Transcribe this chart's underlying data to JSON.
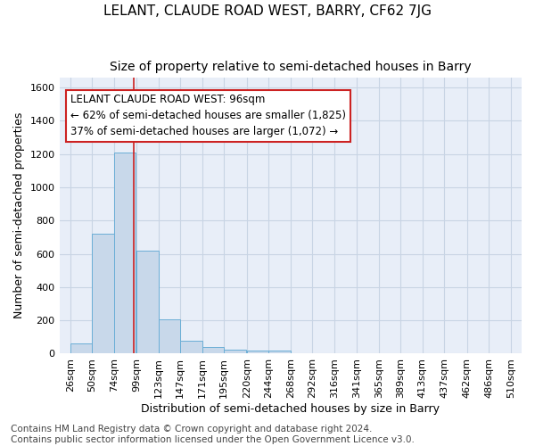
{
  "title": "LELANT, CLAUDE ROAD WEST, BARRY, CF62 7JG",
  "subtitle": "Size of property relative to semi-detached houses in Barry",
  "xlabel": "Distribution of semi-detached houses by size in Barry",
  "ylabel": "Number of semi-detached properties",
  "bar_left_edges": [
    26,
    50,
    74,
    99,
    123,
    147,
    171,
    195,
    220,
    244,
    268,
    292,
    316,
    341,
    365,
    389,
    413,
    437,
    462,
    486
  ],
  "bar_heights": [
    60,
    720,
    1210,
    620,
    205,
    80,
    40,
    25,
    20,
    20,
    0,
    0,
    0,
    0,
    0,
    0,
    0,
    0,
    0,
    0
  ],
  "bin_width": 24,
  "xtick_labels": [
    "26sqm",
    "50sqm",
    "74sqm",
    "99sqm",
    "123sqm",
    "147sqm",
    "171sqm",
    "195sqm",
    "220sqm",
    "244sqm",
    "268sqm",
    "292sqm",
    "316sqm",
    "341sqm",
    "365sqm",
    "389sqm",
    "413sqm",
    "437sqm",
    "462sqm",
    "486sqm",
    "510sqm"
  ],
  "xtick_positions": [
    26,
    50,
    74,
    99,
    123,
    147,
    171,
    195,
    220,
    244,
    268,
    292,
    316,
    341,
    365,
    389,
    413,
    437,
    462,
    486,
    510
  ],
  "ylim": [
    0,
    1660
  ],
  "xlim": [
    14,
    522
  ],
  "bar_color": "#c8d8ea",
  "bar_edge_color": "#6baed6",
  "grid_color": "#c8d4e4",
  "background_color": "#e8eef8",
  "property_size": 96,
  "red_line_color": "#cc2222",
  "annotation_text_line1": "LELANT CLAUDE ROAD WEST: 96sqm",
  "annotation_text_line2": "← 62% of semi-detached houses are smaller (1,825)",
  "annotation_text_line3": "37% of semi-detached houses are larger (1,072) →",
  "annotation_box_color": "#ffffff",
  "annotation_box_edge": "#cc2222",
  "footer_text": "Contains HM Land Registry data © Crown copyright and database right 2024.\nContains public sector information licensed under the Open Government Licence v3.0.",
  "title_fontsize": 11,
  "subtitle_fontsize": 10,
  "xlabel_fontsize": 9,
  "ylabel_fontsize": 9,
  "tick_fontsize": 8,
  "annotation_fontsize": 8.5,
  "footer_fontsize": 7.5
}
